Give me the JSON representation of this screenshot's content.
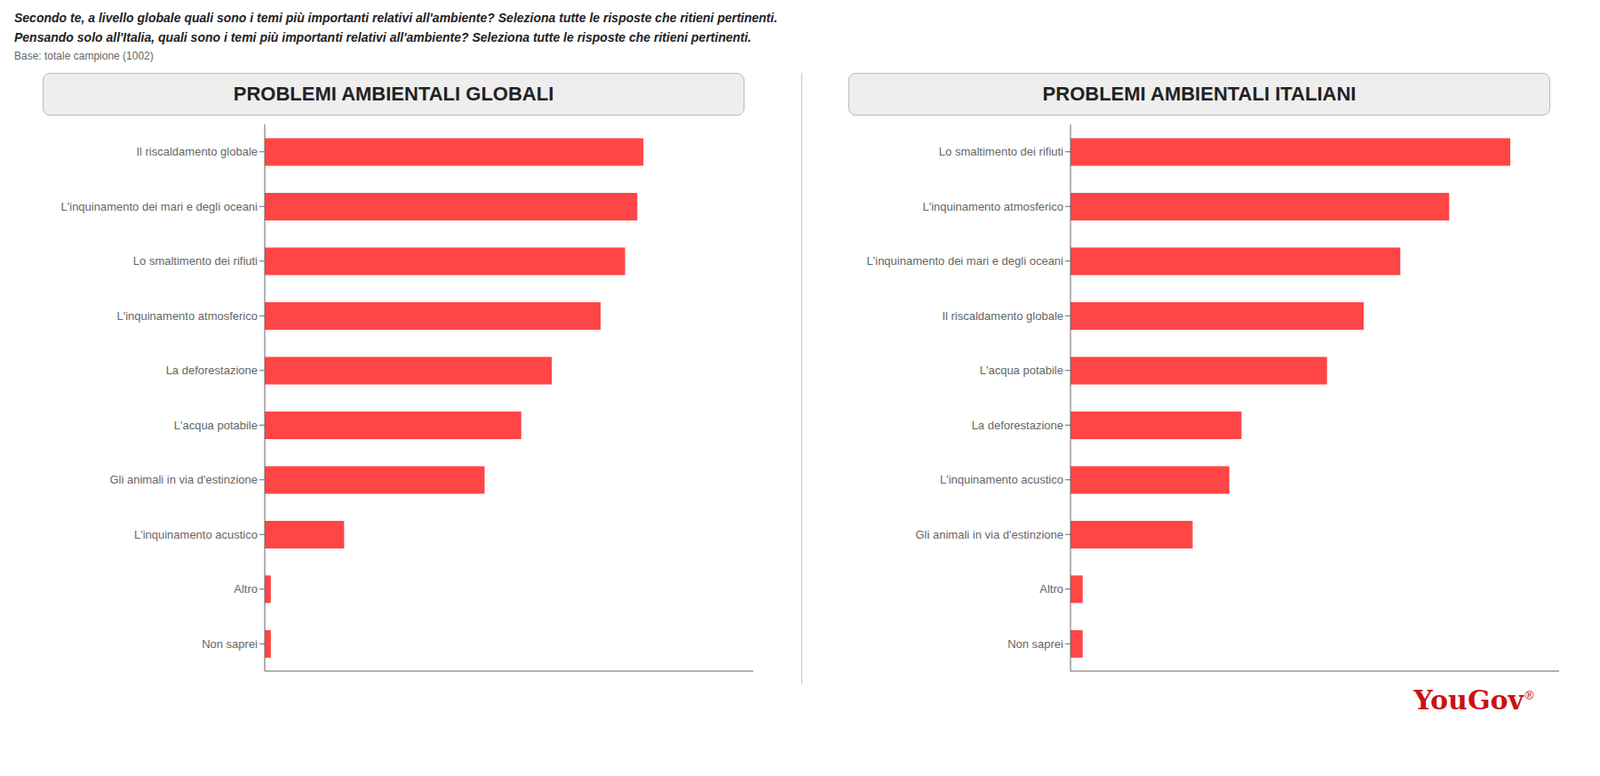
{
  "chart_data": [
    {
      "type": "bar",
      "orientation": "horizontal",
      "title": "PROBLEMI AMBIENTALI GLOBALI",
      "subtitle": "Secondo te, a livello globale quali sono i temi più importanti relativi all'ambiente? Seleziona tutte le risposte che ritieni pertinenti.",
      "annotations": [
        "Base: totale campione (1002)"
      ],
      "categories": [
        "Il riscaldamento globale",
        "L'inquinamento dei mari e degli oceani",
        "Lo smaltimento dei rifiuti",
        "L'inquinamento atmosferico",
        "La deforestazione",
        "L'acqua potabile",
        "Gli animali in via d'estinzione",
        "L'inquinamento acustico",
        "Altro",
        "Non saprei"
      ],
      "values": [
        62,
        61,
        59,
        55,
        47,
        42,
        36,
        13,
        1,
        1
      ],
      "color": "#FF4545",
      "xlim": [
        0,
        80
      ],
      "grid": false,
      "tick_labels": "y"
    },
    {
      "type": "bar",
      "orientation": "horizontal",
      "title": "PROBLEMI AMBIENTALI ITALIANI",
      "subtitle": "Pensando solo all'Italia, quali sono i temi più importanti relativi all'ambiente? Seleziona tutte le risposte che ritieni pertinenti.",
      "annotations": [
        "YouGov",
        "®"
      ],
      "categories": [
        "Lo smaltimento dei rifiuti",
        "L'inquinamento atmosferico",
        "L'inquinamento dei mari e degli oceani",
        "Il riscaldamento globale",
        "L'acqua potabile",
        "La deforestazione",
        "L'inquinamento acustico",
        "Gli animali in via d'estinzione",
        "Altro",
        "Non saprei"
      ],
      "values": [
        72,
        62,
        54,
        48,
        42,
        28,
        26,
        20,
        2,
        2
      ],
      "color": "#FF4545",
      "xlim": [
        0,
        80
      ],
      "grid": false,
      "tick_labels": "y"
    }
  ]
}
